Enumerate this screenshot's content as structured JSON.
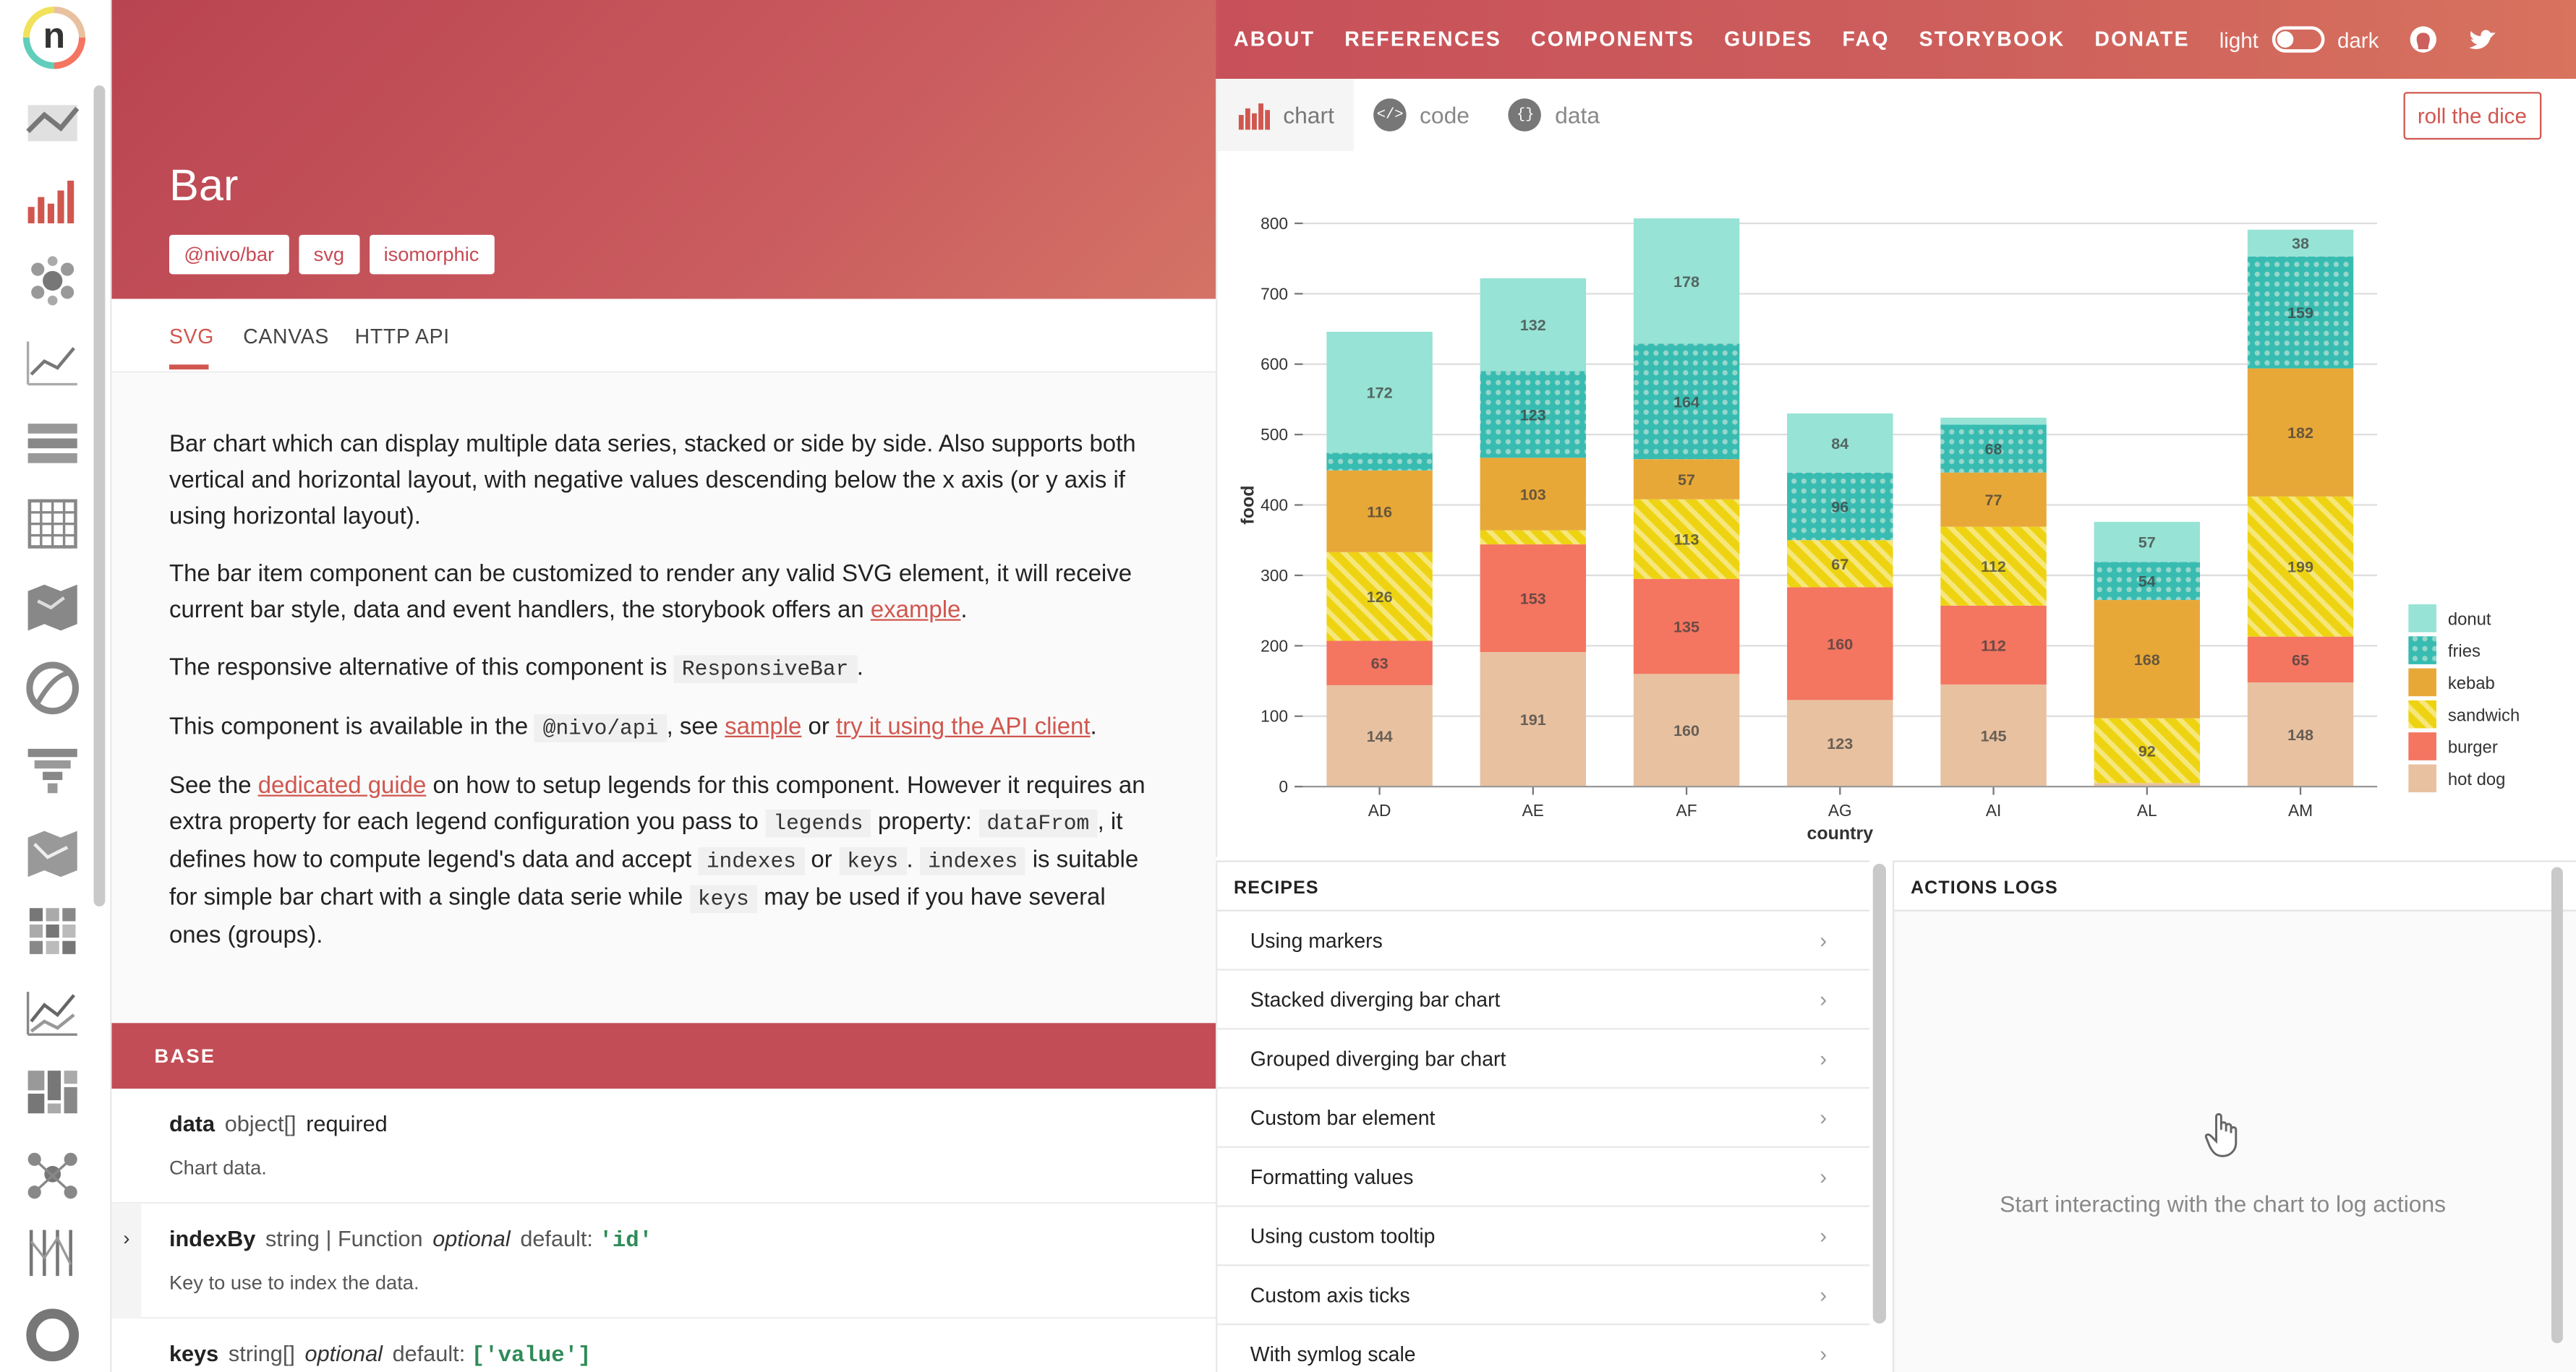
{
  "nav": {
    "links": [
      "ABOUT",
      "REFERENCES",
      "COMPONENTS",
      "GUIDES",
      "FAQ",
      "STORYBOOK",
      "DONATE"
    ],
    "theme_light": "light",
    "theme_dark": "dark"
  },
  "hero": {
    "title": "Bar",
    "tags": [
      "@nivo/bar",
      "svg",
      "isomorphic"
    ]
  },
  "subtabs": [
    "SVG",
    "CANVAS",
    "HTTP API"
  ],
  "description": {
    "p1": "Bar chart which can display multiple data series, stacked or side by side. Also supports both vertical and horizontal layout, with negative values descending below the x axis (or y axis if using horizontal layout).",
    "p2_pre": "The bar item component can be customized to render any valid SVG element, it will receive current bar style, data and event handlers, the storybook offers an ",
    "p2_link": "example",
    "p2_post": ".",
    "p3_pre": "The responsive alternative of this component is ",
    "p3_code": "ResponsiveBar",
    "p3_post": ".",
    "p4_pre": "This component is available in the ",
    "p4_code": "@nivo/api",
    "p4_mid": ", see ",
    "p4_link1": "sample",
    "p4_or": " or ",
    "p4_link2": "try it using the API client",
    "p4_post": ".",
    "p5_pre": "See the ",
    "p5_link": "dedicated guide",
    "p5_a": " on how to setup legends for this component. However it requires an extra property for each legend configuration you pass to ",
    "p5_code1": "legends",
    "p5_b": " property: ",
    "p5_code2": "dataFrom",
    "p5_c": ", it defines how to compute legend's data and accept ",
    "p5_code3": "indexes",
    "p5_d": " or ",
    "p5_code4": "keys",
    "p5_e": ". ",
    "p5_code5": "indexes",
    "p5_f": " is suitable for simple bar chart with a single data serie while ",
    "p5_code6": "keys",
    "p5_g": " may be used if you have several ones (groups)."
  },
  "base_section": "BASE",
  "props": [
    {
      "name": "data",
      "type": "object[]",
      "flag": "required",
      "default": "",
      "desc": "Chart data."
    },
    {
      "name": "indexBy",
      "type": "string | Function",
      "flag": "optional",
      "default_label": "default:",
      "default": "'id'",
      "desc": "Key to use to index the data."
    },
    {
      "name": "keys",
      "type": "string[]",
      "flag": "optional",
      "default_label": "default:",
      "default": "['value']",
      "desc": ""
    }
  ],
  "chart_tabs": [
    "chart",
    "code",
    "data"
  ],
  "roll_button": "roll the dice",
  "recipes": {
    "title": "RECIPES",
    "items": [
      "Using markers",
      "Stacked diverging bar chart",
      "Grouped diverging bar chart",
      "Custom bar element",
      "Formatting values",
      "Using custom tooltip",
      "Custom axis ticks",
      "With symlog scale"
    ]
  },
  "logs": {
    "title": "ACTIONS LOGS",
    "empty": "Start interacting with the chart to log actions"
  },
  "chart_data": {
    "type": "bar",
    "stacked": true,
    "categories": [
      "AD",
      "AE",
      "AF",
      "AG",
      "AI",
      "AL",
      "AM"
    ],
    "series": [
      {
        "name": "hot dog",
        "color": "#e8c1a0",
        "values": [
          144,
          191,
          160,
          123,
          145,
          5,
          148
        ]
      },
      {
        "name": "burger",
        "color": "#f47560",
        "values": [
          63,
          153,
          135,
          160,
          112,
          0,
          65
        ]
      },
      {
        "name": "sandwich",
        "color": "#f1e15b",
        "values": [
          126,
          20,
          113,
          67,
          112,
          92,
          199
        ]
      },
      {
        "name": "kebab",
        "color": "#e8a838",
        "values": [
          116,
          103,
          57,
          0,
          77,
          168,
          182
        ]
      },
      {
        "name": "fries",
        "color": "#61cdbb",
        "values": [
          25,
          123,
          164,
          96,
          68,
          54,
          159
        ]
      },
      {
        "name": "donut",
        "color": "#97e3d5",
        "values": [
          172,
          132,
          178,
          84,
          10,
          57,
          38
        ]
      }
    ],
    "xlabel": "country",
    "ylabel": "food",
    "ylim": [
      0,
      800
    ],
    "yticks": [
      0,
      100,
      200,
      300,
      400,
      500,
      600,
      700,
      800
    ],
    "label_min": 30,
    "legend_order": [
      "donut",
      "fries",
      "kebab",
      "sandwich",
      "burger",
      "hot dog"
    ],
    "legend_position": "bottom-right",
    "grid": true
  }
}
